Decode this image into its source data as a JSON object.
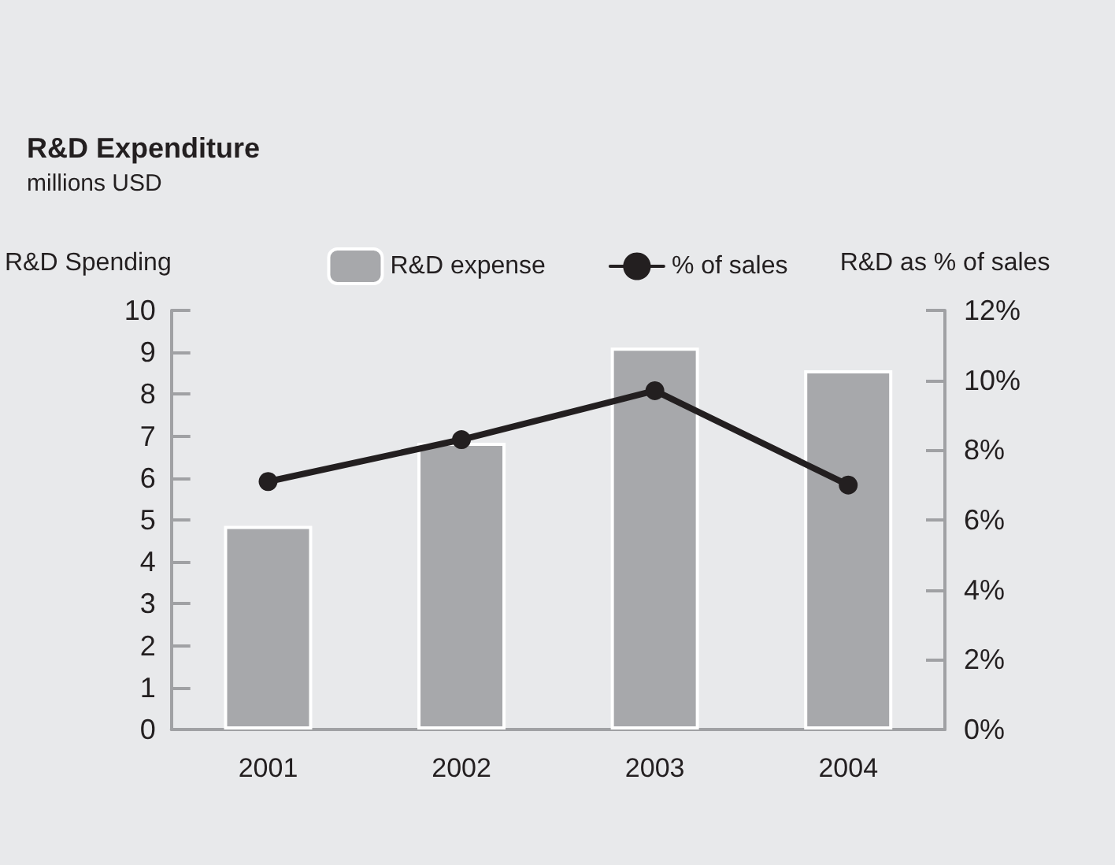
{
  "chart_data": {
    "type": "bar",
    "title": "R&D Expenditure",
    "subtitle": "millions USD",
    "ylabel": "R&D Spending",
    "y2label": "R&D as % of sales",
    "categories": [
      "2001",
      "2002",
      "2003",
      "2004"
    ],
    "series": [
      {
        "name": "R&D expense",
        "color": "#a7a8ab",
        "values": [
          4.86,
          6.84,
          9.11,
          8.57
        ]
      },
      {
        "name": "% of sales",
        "type": "line",
        "axis": "y2",
        "color": "#231f20",
        "values": [
          7.1,
          8.3,
          9.7,
          7.0
        ]
      }
    ],
    "ylim": [
      0,
      10
    ],
    "yticks": [
      0,
      1,
      2,
      3,
      4,
      5,
      6,
      7,
      8,
      9,
      10
    ],
    "y2lim": [
      0,
      12
    ],
    "y2ticks": [
      {
        "value": 0,
        "label": "0%"
      },
      {
        "value": 2,
        "label": "2%"
      },
      {
        "value": 4,
        "label": "4%"
      },
      {
        "value": 6,
        "label": "6%"
      },
      {
        "value": 8,
        "label": "8%"
      },
      {
        "value": 10,
        "label": "10%"
      },
      {
        "value": 12,
        "label": "12%"
      }
    ],
    "grid": false,
    "legend": "top",
    "marker": "circle",
    "line_style": "solid"
  }
}
